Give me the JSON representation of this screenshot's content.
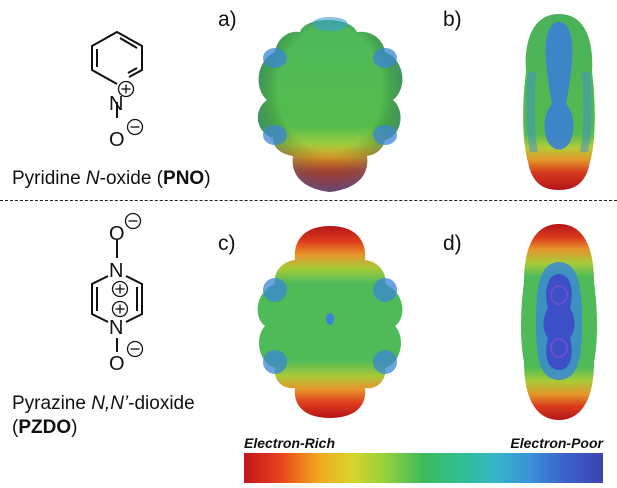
{
  "molecules": [
    {
      "caption_pre": "Pyridine ",
      "caption_italic": "N",
      "caption_mid": "-oxide (",
      "caption_bold": "PNO",
      "caption_post": ")",
      "atoms": {
        "n": "N",
        "o": "O",
        "plus": "+",
        "minus": "−"
      }
    },
    {
      "caption_pre": "Pyrazine ",
      "caption_italic": "N,N’",
      "caption_mid": "-dioxide",
      "caption_line2_pre": "(",
      "caption_bold": "PZDO",
      "caption_post": ")",
      "atoms": {
        "n": "N",
        "o": "O",
        "plus": "+",
        "minus": "−"
      }
    }
  ],
  "panels": [
    {
      "label": "a)"
    },
    {
      "label": "b)"
    },
    {
      "label": "c)"
    },
    {
      "label": "d)"
    }
  ],
  "color_scale": {
    "left_label": "Electron-Rich",
    "right_label": "Electron-Poor",
    "stops": [
      "#c0151b",
      "#e8421c",
      "#f2a21e",
      "#d9d52a",
      "#8fcf3c",
      "#3dbb5a",
      "#2fbf8e",
      "#35b6c6",
      "#3a8fd9",
      "#3b5fc9",
      "#3c44b0"
    ]
  },
  "colors": {
    "red": "#c8201e",
    "orange": "#e78a25",
    "yellow": "#c9cc36",
    "green": "#5cbf4e",
    "teal": "#3fbf86",
    "cyan": "#37aec8",
    "blue": "#3a82d6",
    "indigo": "#3d4fc4"
  }
}
